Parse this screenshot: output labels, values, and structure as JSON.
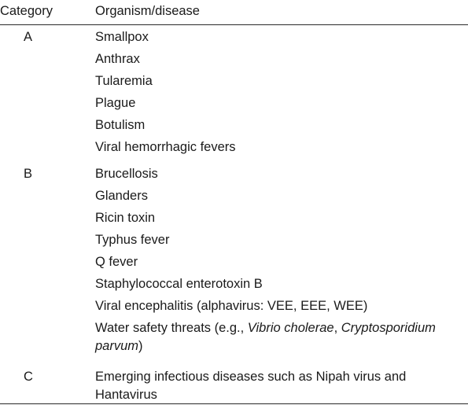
{
  "table": {
    "headers": {
      "category": "Category",
      "organism": "Organism/disease"
    },
    "sections": [
      {
        "category": "A",
        "items": [
          "Smallpox",
          "Anthrax",
          "Tularemia",
          "Plague",
          "Botulism",
          "Viral hemorrhagic fevers"
        ]
      },
      {
        "category": "B",
        "items": [
          "Brucellosis",
          "Glanders",
          "Ricin toxin",
          "Typhus fever",
          "Q fever",
          "Staphylococcal enterotoxin B",
          "Viral encephalitis (alphavirus: VEE, EEE, WEE)"
        ],
        "water_item": {
          "prefix": "Water safety threats (e.g., ",
          "italic_1": "Vibrio cholerae",
          "middle": ", ",
          "italic_2": "Cryptosporidium parvum",
          "suffix": ")"
        }
      },
      {
        "category": "C",
        "items": [
          "Emerging infectious diseases such as Nipah virus and Hantavirus"
        ]
      }
    ]
  }
}
